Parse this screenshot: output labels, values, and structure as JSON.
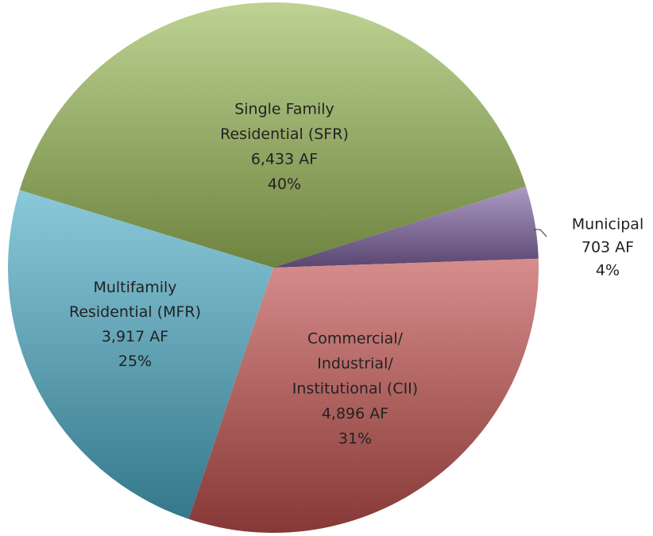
{
  "chart_data": {
    "type": "pie",
    "categories": [
      [
        "Single Family",
        "Residential (SFR)"
      ],
      [
        "Municipal"
      ],
      [
        "Commercial/",
        "Industrial/",
        "Institutional (CII)"
      ],
      [
        "Multifamily",
        "Residential (MFR)"
      ]
    ],
    "values": [
      6433,
      703,
      4896,
      3917
    ],
    "value_labels": [
      "6,433 AF",
      "703 AF",
      "4,896 AF",
      "3,917 AF"
    ],
    "percentages": [
      40,
      4,
      31,
      25
    ],
    "percent_labels": [
      "40%",
      "4%",
      "31%",
      "25%"
    ],
    "colors": [
      "#9bbb59",
      "#8064a2",
      "#c0504d",
      "#4bacc6"
    ]
  }
}
